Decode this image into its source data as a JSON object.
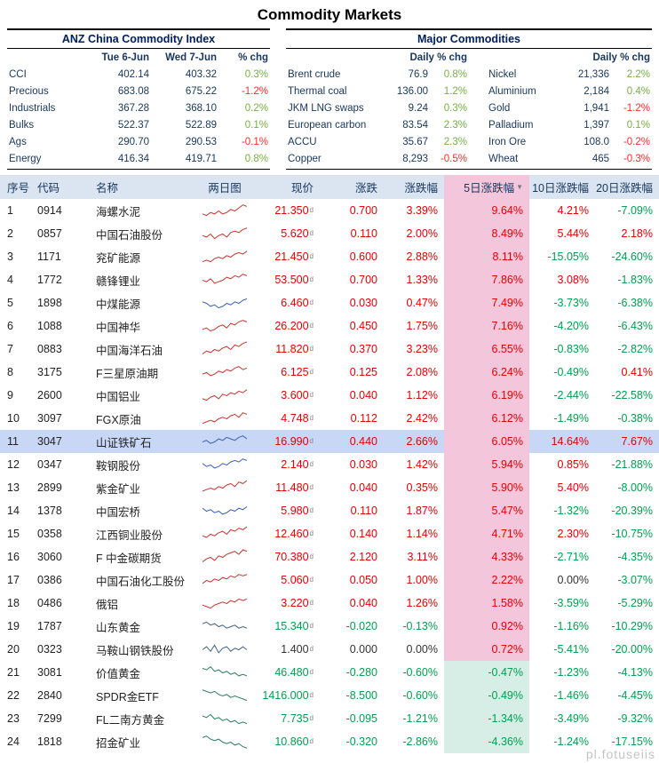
{
  "title": "Commodity Markets",
  "watermark": "pl.fotuseiis",
  "colors": {
    "up": "#e60000",
    "down": "#00a050",
    "flat": "#333333",
    "top_up": "#76b043",
    "top_down": "#ff2a2a"
  },
  "anz": {
    "title": "ANZ China Commodity Index",
    "col_headers": [
      "Tue 6-Jun",
      "Wed 7-Jun",
      "% chg"
    ],
    "rows": [
      {
        "label": "CCI",
        "v1": "402.14",
        "v2": "403.32",
        "chg": "0.3%"
      },
      {
        "label": "Precious",
        "v1": "683.08",
        "v2": "675.22",
        "chg": "-1.2%"
      },
      {
        "label": "Industrials",
        "v1": "367.28",
        "v2": "368.10",
        "chg": "0.2%"
      },
      {
        "label": "Bulks",
        "v1": "522.37",
        "v2": "522.89",
        "chg": "0.1%"
      },
      {
        "label": "Ags",
        "v1": "290.70",
        "v2": "290.53",
        "chg": "-0.1%"
      },
      {
        "label": "Energy",
        "v1": "416.34",
        "v2": "419.71",
        "chg": "0.8%"
      }
    ]
  },
  "major": {
    "title": "Major Commodities",
    "chg_header": "Daily % chg",
    "left": [
      {
        "label": "Brent crude",
        "value": "76.9",
        "chg": "0.8%"
      },
      {
        "label": "Thermal coal",
        "value": "136.00",
        "chg": "1.2%"
      },
      {
        "label": "JKM LNG swaps",
        "value": "9.24",
        "chg": "0.3%"
      },
      {
        "label": "European carbon",
        "value": "83.54",
        "chg": "2.3%"
      },
      {
        "label": "ACCU",
        "value": "35.67",
        "chg": "2.3%"
      },
      {
        "label": "Copper",
        "value": "8,293",
        "chg": "-0.5%"
      }
    ],
    "right": [
      {
        "label": "Nickel",
        "value": "21,336",
        "chg": "2.2%"
      },
      {
        "label": "Aluminium",
        "value": "2,184",
        "chg": "0.4%"
      },
      {
        "label": "Gold",
        "value": "1,941",
        "chg": "-1.2%"
      },
      {
        "label": "Palladium",
        "value": "1,397",
        "chg": "0.1%"
      },
      {
        "label": "Iron Ore",
        "value": "108.0",
        "chg": "-0.2%"
      },
      {
        "label": "Wheat",
        "value": "465",
        "chg": "-0.3%"
      }
    ]
  },
  "table": {
    "headers": [
      "序号",
      "代码",
      "名称",
      "两日图",
      "现价",
      "涨跌",
      "涨跌幅",
      "5日涨跌幅",
      "10日涨跌幅",
      "20日涨跌幅"
    ],
    "sorted_col": 7,
    "sort_icon": "▼",
    "price_mark": "d",
    "rows": [
      {
        "no": "1",
        "code": "0914",
        "name": "海螺水泥",
        "price": "21.350",
        "chg": "0.700",
        "pct": "3.39%",
        "d5": "9.64%",
        "d10": "4.21%",
        "d20": "-7.09%",
        "sc": "#c9342e",
        "sp": [
          3,
          2,
          4,
          3,
          5,
          3,
          4,
          6,
          5,
          7,
          9,
          8
        ]
      },
      {
        "no": "2",
        "code": "0857",
        "name": "中国石油股份",
        "price": "5.620",
        "chg": "0.110",
        "pct": "2.00%",
        "d5": "8.49%",
        "d10": "5.44%",
        "d20": "2.18%",
        "sc": "#c9342e",
        "sp": [
          4,
          3,
          5,
          2,
          4,
          5,
          3,
          6,
          7,
          6,
          8,
          9
        ]
      },
      {
        "no": "3",
        "code": "1171",
        "name": "兖矿能源",
        "price": "21.450",
        "chg": "0.600",
        "pct": "2.88%",
        "d5": "8.11%",
        "d10": "-15.05%",
        "d20": "-24.60%",
        "sc": "#c9342e",
        "sp": [
          2,
          3,
          2,
          4,
          5,
          4,
          6,
          5,
          7,
          8,
          7,
          9
        ]
      },
      {
        "no": "4",
        "code": "1772",
        "name": "赣锋锂业",
        "price": "53.500",
        "chg": "0.700",
        "pct": "1.33%",
        "d5": "7.86%",
        "d10": "3.08%",
        "d20": "-1.83%",
        "sc": "#c9342e",
        "sp": [
          5,
          4,
          6,
          3,
          4,
          5,
          7,
          6,
          8,
          7,
          9,
          8
        ]
      },
      {
        "no": "5",
        "code": "1898",
        "name": "中煤能源",
        "price": "6.460",
        "chg": "0.030",
        "pct": "0.47%",
        "d5": "7.49%",
        "d10": "-3.73%",
        "d20": "-6.38%",
        "sc": "#3a62b5",
        "sp": [
          6,
          5,
          3,
          4,
          2,
          3,
          5,
          4,
          6,
          5,
          7,
          8
        ]
      },
      {
        "no": "6",
        "code": "1088",
        "name": "中国神华",
        "price": "26.200",
        "chg": "0.450",
        "pct": "1.75%",
        "d5": "7.16%",
        "d10": "-4.20%",
        "d20": "-6.43%",
        "sc": "#c9342e",
        "sp": [
          3,
          4,
          2,
          3,
          5,
          6,
          4,
          7,
          6,
          8,
          9,
          8
        ]
      },
      {
        "no": "7",
        "code": "0883",
        "name": "中国海洋石油",
        "price": "11.820",
        "chg": "0.370",
        "pct": "3.23%",
        "d5": "6.55%",
        "d10": "-0.83%",
        "d20": "-2.82%",
        "sc": "#c9342e",
        "sp": [
          2,
          4,
          3,
          5,
          4,
          6,
          7,
          5,
          8,
          7,
          9,
          10
        ]
      },
      {
        "no": "8",
        "code": "3175",
        "name": "F三星原油期",
        "price": "6.125",
        "chg": "0.125",
        "pct": "2.08%",
        "d5": "6.24%",
        "d10": "-0.49%",
        "d20": "0.41%",
        "sc": "#c9342e",
        "sp": [
          4,
          5,
          3,
          4,
          6,
          5,
          7,
          6,
          8,
          9,
          7,
          8
        ]
      },
      {
        "no": "9",
        "code": "2600",
        "name": "中国铝业",
        "price": "3.600",
        "chg": "0.040",
        "pct": "1.12%",
        "d5": "6.19%",
        "d10": "-2.44%",
        "d20": "-22.58%",
        "sc": "#c9342e",
        "sp": [
          3,
          2,
          4,
          5,
          3,
          6,
          5,
          7,
          6,
          8,
          7,
          9
        ]
      },
      {
        "no": "10",
        "code": "3097",
        "name": "FGX原油",
        "price": "4.748",
        "chg": "0.112",
        "pct": "2.42%",
        "d5": "6.12%",
        "d10": "-1.49%",
        "d20": "-0.38%",
        "sc": "#c9342e",
        "sp": [
          2,
          3,
          4,
          3,
          5,
          6,
          5,
          7,
          8,
          6,
          9,
          8
        ]
      },
      {
        "no": "11",
        "code": "3047",
        "name": "山证铁矿石",
        "price": "16.990",
        "chg": "0.440",
        "pct": "2.66%",
        "d5": "6.05%",
        "d10": "14.64%",
        "d20": "7.67%",
        "highlight": true,
        "sc": "#3a62b5",
        "sp": [
          5,
          6,
          4,
          5,
          7,
          6,
          8,
          7,
          6,
          8,
          9,
          7
        ]
      },
      {
        "no": "12",
        "code": "0347",
        "name": "鞍钢股份",
        "price": "2.140",
        "chg": "0.030",
        "pct": "1.42%",
        "d5": "5.94%",
        "d10": "0.85%",
        "d20": "-21.88%",
        "sc": "#3a62b5",
        "sp": [
          6,
          4,
          5,
          3,
          4,
          6,
          5,
          7,
          8,
          7,
          9,
          8
        ]
      },
      {
        "no": "13",
        "code": "2899",
        "name": "紫金矿业",
        "price": "11.480",
        "chg": "0.040",
        "pct": "0.35%",
        "d5": "5.90%",
        "d10": "5.40%",
        "d20": "-8.00%",
        "sc": "#c9342e",
        "sp": [
          3,
          4,
          5,
          4,
          6,
          5,
          7,
          8,
          6,
          9,
          8,
          10
        ]
      },
      {
        "no": "14",
        "code": "1378",
        "name": "中国宏桥",
        "price": "5.980",
        "chg": "0.110",
        "pct": "1.87%",
        "d5": "5.47%",
        "d10": "-1.32%",
        "d20": "-20.39%",
        "sc": "#3a62b5",
        "sp": [
          7,
          5,
          6,
          4,
          5,
          3,
          4,
          6,
          5,
          7,
          6,
          8
        ]
      },
      {
        "no": "15",
        "code": "0358",
        "name": "江西铜业股份",
        "price": "12.460",
        "chg": "0.140",
        "pct": "1.14%",
        "d5": "4.71%",
        "d10": "2.30%",
        "d20": "-10.75%",
        "sc": "#c9342e",
        "sp": [
          4,
          3,
          5,
          4,
          6,
          7,
          5,
          8,
          7,
          9,
          8,
          10
        ]
      },
      {
        "no": "16",
        "code": "3060",
        "name": "F 中金碳期货",
        "price": "70.380",
        "chg": "2.120",
        "pct": "3.11%",
        "d5": "4.33%",
        "d10": "-2.71%",
        "d20": "-4.35%",
        "sc": "#c9342e",
        "sp": [
          2,
          4,
          5,
          3,
          6,
          5,
          7,
          8,
          9,
          7,
          10,
          9
        ]
      },
      {
        "no": "17",
        "code": "0386",
        "name": "中国石油化工股份",
        "price": "5.060",
        "chg": "0.050",
        "pct": "1.00%",
        "d5": "2.22%",
        "d10": "0.00%",
        "d20": "-3.07%",
        "sc": "#c9342e",
        "sp": [
          3,
          5,
          4,
          6,
          5,
          7,
          6,
          8,
          7,
          9,
          8,
          9
        ]
      },
      {
        "no": "18",
        "code": "0486",
        "name": "俄铝",
        "price": "3.220",
        "chg": "0.040",
        "pct": "1.26%",
        "d5": "1.58%",
        "d10": "-3.59%",
        "d20": "-5.29%",
        "sc": "#c9342e",
        "sp": [
          4,
          3,
          2,
          4,
          5,
          6,
          5,
          7,
          6,
          8,
          7,
          8
        ]
      },
      {
        "no": "19",
        "code": "1787",
        "name": "山东黄金",
        "price": "15.340",
        "chg": "-0.020",
        "pct": "-0.13%",
        "d5": "0.92%",
        "d10": "-1.16%",
        "d20": "-10.29%",
        "sc": "#44617a",
        "sp": [
          7,
          8,
          6,
          7,
          5,
          6,
          4,
          5,
          6,
          4,
          5,
          4
        ]
      },
      {
        "no": "20",
        "code": "0323",
        "name": "马鞍山钢铁股份",
        "price": "1.400",
        "chg": "0.000",
        "pct": "0.00%",
        "d5": "0.72%",
        "d10": "-5.41%",
        "d20": "-20.00%",
        "sc": "#44617a",
        "sp": [
          5,
          7,
          4,
          8,
          3,
          6,
          7,
          4,
          6,
          5,
          7,
          5
        ]
      },
      {
        "no": "21",
        "code": "3081",
        "name": "价值黄金",
        "price": "46.480",
        "chg": "-0.280",
        "pct": "-0.60%",
        "d5": "-0.47%",
        "d10": "-1.23%",
        "d20": "-4.13%",
        "sc": "#2e7d5f",
        "sp": [
          8,
          7,
          9,
          6,
          7,
          5,
          6,
          4,
          5,
          3,
          4,
          3
        ]
      },
      {
        "no": "22",
        "code": "2840",
        "name": "SPDR金ETF",
        "price": "1416.000",
        "chg": "-8.500",
        "pct": "-0.60%",
        "d5": "-0.49%",
        "d10": "-1.46%",
        "d20": "-4.45%",
        "sc": "#2e7d5f",
        "sp": [
          9,
          8,
          7,
          8,
          6,
          5,
          6,
          4,
          5,
          4,
          3,
          2
        ]
      },
      {
        "no": "23",
        "code": "7299",
        "name": "FL二南方黄金",
        "price": "7.735",
        "chg": "-0.095",
        "pct": "-1.21%",
        "d5": "-1.34%",
        "d10": "-3.49%",
        "d20": "-9.32%",
        "sc": "#2e7d5f",
        "sp": [
          7,
          6,
          8,
          5,
          6,
          4,
          5,
          3,
          4,
          2,
          3,
          2
        ]
      },
      {
        "no": "24",
        "code": "1818",
        "name": "招金矿业",
        "price": "10.860",
        "chg": "-0.320",
        "pct": "-2.86%",
        "d5": "-4.36%",
        "d10": "-1.24%",
        "d20": "-17.15%",
        "sc": "#2e7d5f",
        "sp": [
          8,
          9,
          7,
          6,
          7,
          5,
          4,
          5,
          3,
          4,
          2,
          1
        ]
      }
    ]
  }
}
